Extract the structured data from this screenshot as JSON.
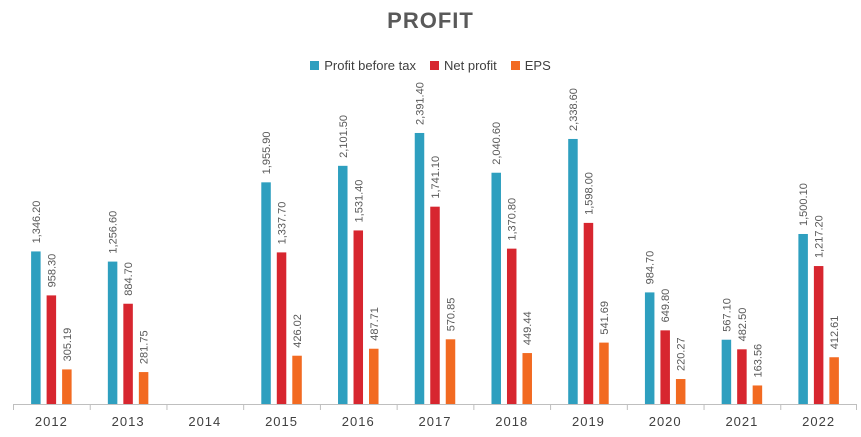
{
  "chart_data": {
    "type": "bar",
    "title": "PROFIT",
    "categories": [
      "2012",
      "2013",
      "2014",
      "2015",
      "2016",
      "2017",
      "2018",
      "2019",
      "2020",
      "2021",
      "2022"
    ],
    "series": [
      {
        "name": "Profit before tax",
        "color": "#2E9FBF",
        "values": [
          1346.2,
          1256.6,
          null,
          1955.9,
          2101.5,
          2391.4,
          2040.6,
          2338.6,
          984.7,
          567.1,
          1500.1
        ],
        "labels": [
          "1,346.20",
          "1,256.60",
          "",
          "1,955.90",
          "2,101.50",
          "2,391.40",
          "2,040.60",
          "2,338.60",
          "984.70",
          "567.10",
          "1,500.10"
        ]
      },
      {
        "name": "Net profit",
        "color": "#D7262F",
        "values": [
          958.3,
          884.7,
          null,
          1337.7,
          1531.4,
          1741.1,
          1370.8,
          1598.0,
          649.8,
          482.5,
          1217.2
        ],
        "labels": [
          "958.30",
          "884.70",
          "",
          "1,337.70",
          "1,531.40",
          "1,741.10",
          "1,370.80",
          "1,598.00",
          "649.80",
          "482.50",
          "1,217.20"
        ]
      },
      {
        "name": "EPS",
        "color": "#F26A21",
        "values": [
          305.19,
          281.75,
          null,
          426.02,
          487.71,
          570.85,
          449.44,
          541.69,
          220.27,
          163.56,
          412.61
        ],
        "labels": [
          "305.19",
          "281.75",
          "",
          "426.02",
          "487.71",
          "570.85",
          "449.44",
          "541.69",
          "220.27",
          "163.56",
          "412.61"
        ]
      }
    ],
    "ylim": [
      0,
      2700
    ],
    "grid": false,
    "legend_position": "top-center",
    "data_labels": true
  }
}
